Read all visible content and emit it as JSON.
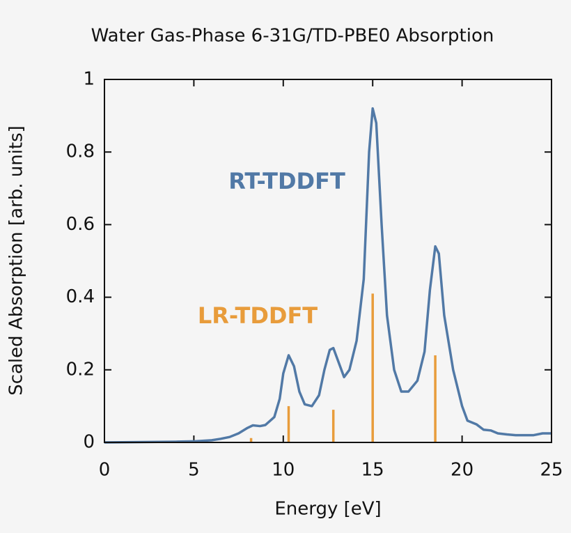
{
  "chart_data": {
    "type": "line",
    "title": "Water Gas-Phase 6-31G/TD-PBE0 Absorption",
    "xlabel": "Energy [eV]",
    "ylabel": "Scaled Absorption [arb. units]",
    "xlim": [
      0,
      25
    ],
    "xticks": [
      0,
      5,
      10,
      15,
      20,
      25
    ],
    "ylim": [
      0,
      1
    ],
    "yticks": [
      0,
      0.2,
      0.4,
      0.6,
      0.8,
      1
    ],
    "series": [
      {
        "name": "RT-TDDFT",
        "color": "#5179a6",
        "type": "line",
        "x": [
          0,
          2,
          4,
          5,
          6,
          6.5,
          7,
          7.5,
          8,
          8.3,
          8.7,
          9,
          9.5,
          9.8,
          10,
          10.3,
          10.6,
          10.9,
          11.2,
          11.6,
          12,
          12.3,
          12.6,
          12.8,
          13.1,
          13.4,
          13.7,
          14.1,
          14.5,
          14.8,
          15,
          15.2,
          15.5,
          15.8,
          16.2,
          16.6,
          17,
          17.5,
          17.9,
          18.2,
          18.5,
          18.7,
          19,
          19.5,
          20,
          20.3,
          20.8,
          21.2,
          21.6,
          22,
          22.5,
          23,
          23.5,
          24,
          24.5,
          25
        ],
        "values": [
          0,
          0.001,
          0.002,
          0.003,
          0.006,
          0.01,
          0.015,
          0.025,
          0.04,
          0.047,
          0.045,
          0.048,
          0.07,
          0.12,
          0.19,
          0.24,
          0.21,
          0.14,
          0.105,
          0.1,
          0.13,
          0.2,
          0.255,
          0.26,
          0.22,
          0.18,
          0.2,
          0.28,
          0.45,
          0.8,
          0.92,
          0.88,
          0.6,
          0.35,
          0.2,
          0.14,
          0.14,
          0.17,
          0.25,
          0.42,
          0.54,
          0.52,
          0.35,
          0.2,
          0.1,
          0.06,
          0.05,
          0.035,
          0.033,
          0.025,
          0.022,
          0.02,
          0.02,
          0.02,
          0.025,
          0.025
        ]
      },
      {
        "name": "LR-TDDFT",
        "color": "#e89c3b",
        "type": "stick",
        "x": [
          8.2,
          10.3,
          12.8,
          15,
          18.5
        ],
        "values": [
          0.012,
          0.1,
          0.09,
          0.41,
          0.24
        ]
      }
    ]
  }
}
